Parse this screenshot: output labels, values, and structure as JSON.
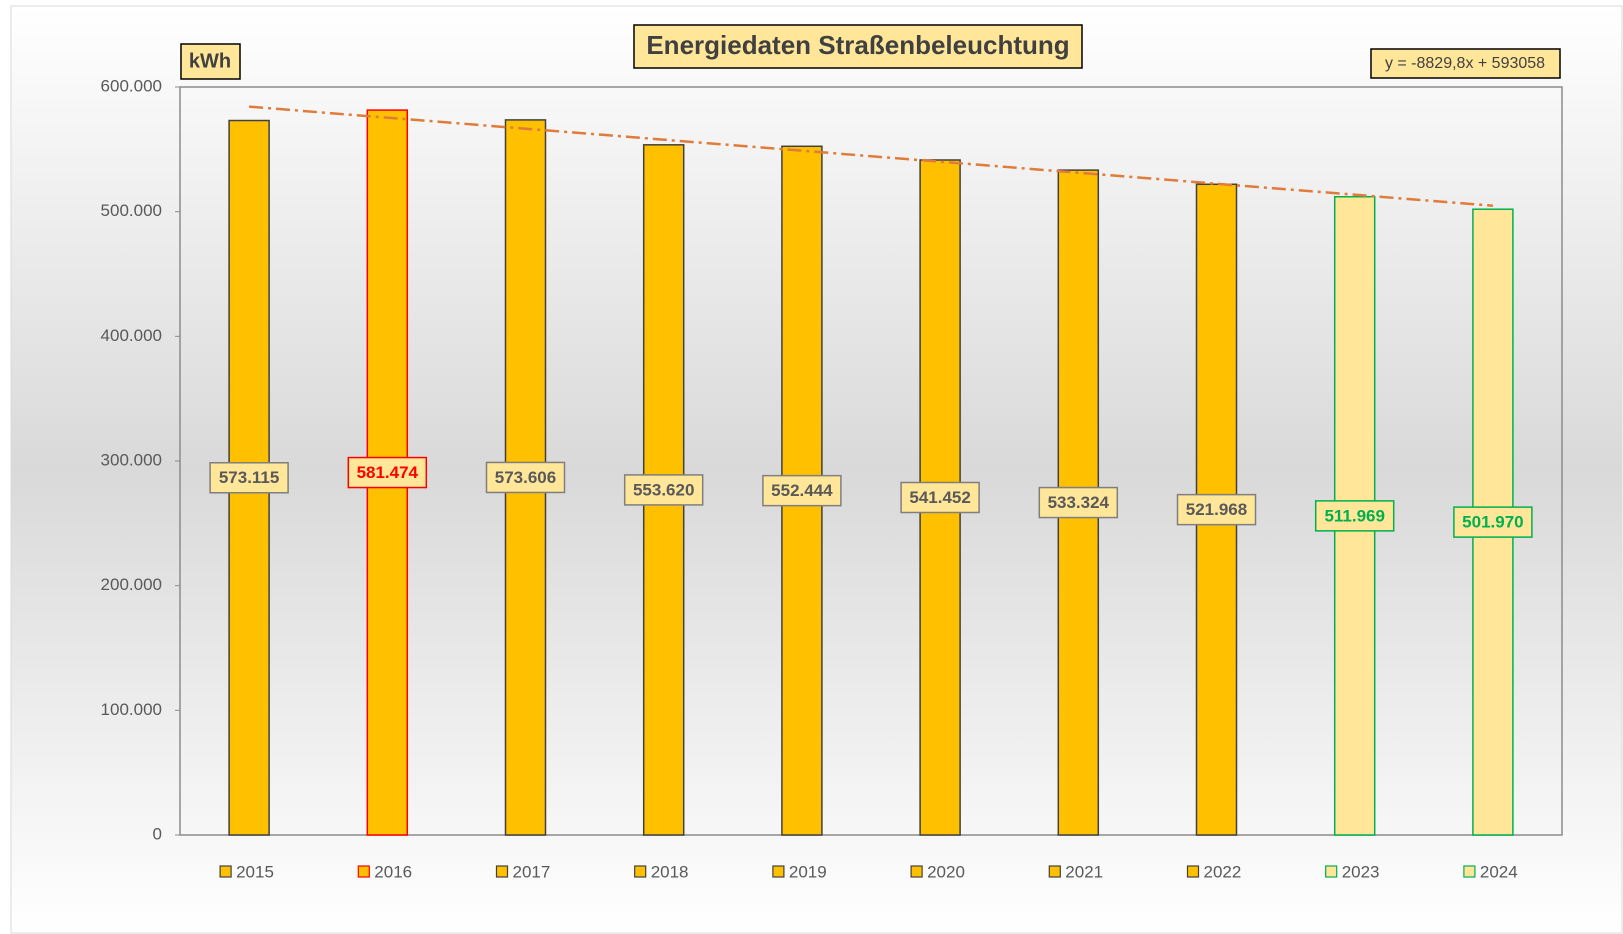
{
  "chart_data": {
    "type": "bar",
    "title": "Energiedaten Straßenbeleuchtung",
    "y_label": "kWh",
    "categories": [
      "2015",
      "2016",
      "2017",
      "2018",
      "2019",
      "2020",
      "2021",
      "2022",
      "2023",
      "2024"
    ],
    "values": [
      573115,
      581474,
      573606,
      553620,
      552444,
      541452,
      533324,
      521968,
      511969,
      501970
    ],
    "value_labels": [
      "573.115",
      "581.474",
      "573.606",
      "553.620",
      "552.444",
      "541.452",
      "533.324",
      "521.968",
      "511.969",
      "501.970"
    ],
    "colors": [
      "#ffc000",
      "#ffc000",
      "#ffc000",
      "#ffc000",
      "#ffc000",
      "#ffc000",
      "#ffc000",
      "#ffc000",
      "#ffe699",
      "#ffe699"
    ],
    "edge_colors": [
      "#404040",
      "#ff0000",
      "#404040",
      "#404040",
      "#404040",
      "#404040",
      "#404040",
      "#404040",
      "#00b050",
      "#00b050"
    ],
    "label_colors": [
      "#595959",
      "#ff0000",
      "#595959",
      "#595959",
      "#595959",
      "#595959",
      "#595959",
      "#595959",
      "#00b050",
      "#00b050"
    ],
    "ylim": [
      0,
      600000
    ],
    "yticks": [
      0,
      {
        "value": 100000,
        "label": "100.000"
      },
      {
        "value": 200000,
        "label": "200.000"
      },
      {
        "value": 300000,
        "label": "300.000"
      },
      {
        "value": 400000,
        "label": "400.000"
      },
      {
        "value": 500000,
        "label": "500.000"
      },
      {
        "value": 600000,
        "label": "600.000"
      }
    ],
    "grid": false,
    "legend": "bottom",
    "trendline": {
      "label": "y = -8829,8x + 593058",
      "slope": -8829.8,
      "intercept": 593058,
      "color": "#e07b39"
    }
  }
}
